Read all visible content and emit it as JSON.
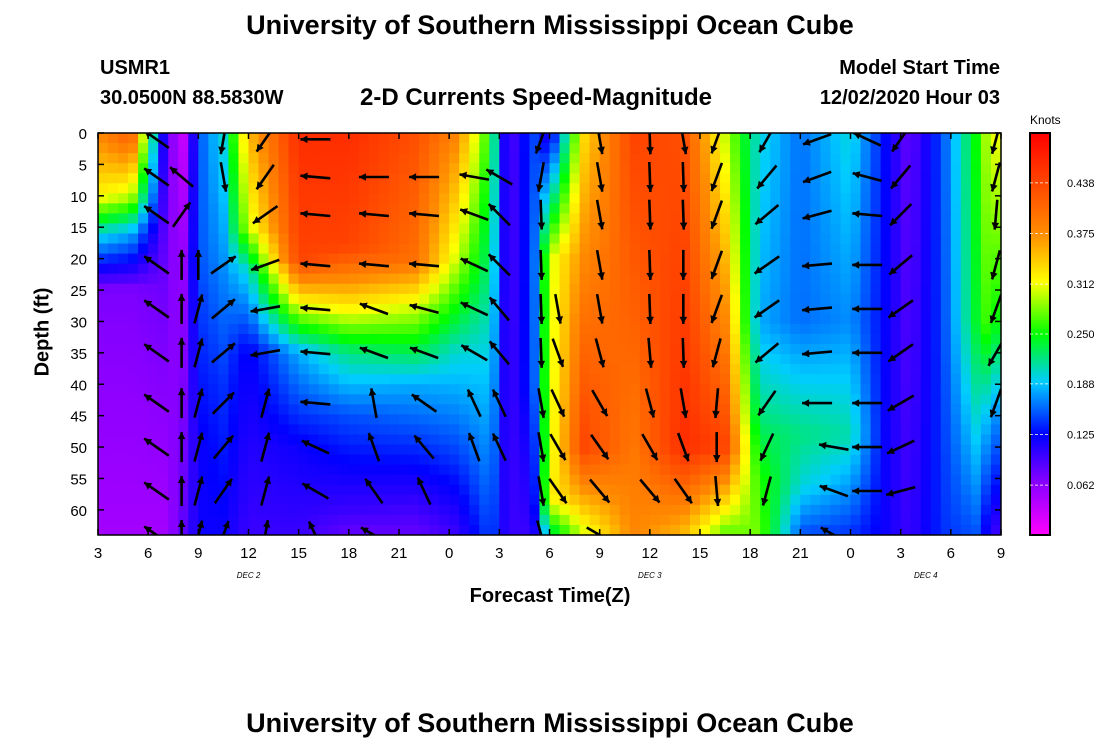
{
  "header": {
    "title": "University of Southern Mississippi Ocean Cube",
    "station": "USMR1",
    "coords": "30.0500N 88.5830W",
    "plot_title": "2-D Currents Speed-Magnitude",
    "model_start_label": "Model Start Time",
    "model_start_value": "12/02/2020 Hour 03"
  },
  "footer": {
    "title": "University of Southern Mississippi Ocean Cube"
  },
  "chart_data": {
    "type": "heatmap",
    "title": "2-D Currents Speed-Magnitude",
    "xlabel": "Forecast Time(Z)",
    "ylabel": "Depth (ft)",
    "x_tick_labels": [
      "3",
      "6",
      "9",
      "12",
      "15",
      "18",
      "21",
      "0",
      "3",
      "6",
      "9",
      "12",
      "15",
      "18",
      "21",
      "0",
      "3",
      "6",
      "9"
    ],
    "x_range_hours": [
      0,
      54
    ],
    "date_labels": [
      {
        "label": "DEC 2",
        "hour": 9
      },
      {
        "label": "DEC 3",
        "hour": 33
      },
      {
        "label": "DEC 4",
        "hour": 49.5
      }
    ],
    "y_ticks": [
      0,
      5,
      10,
      15,
      20,
      25,
      30,
      35,
      40,
      45,
      50,
      55,
      60
    ],
    "ylim": [
      0,
      64
    ],
    "y_inverted": true,
    "colorbar": {
      "units": "Knots",
      "ticks": [
        0.062,
        0.125,
        0.188,
        0.25,
        0.312,
        0.375,
        0.438
      ],
      "range": [
        0.0,
        0.5
      ]
    },
    "speed_columns": [
      {
        "hour": 0,
        "p": [
          [
            0,
            0.38
          ],
          [
            10,
            0.32
          ],
          [
            16,
            0.2
          ],
          [
            25,
            0.07
          ],
          [
            64,
            0.05
          ]
        ]
      },
      {
        "hour": 2,
        "p": [
          [
            0,
            0.42
          ],
          [
            10,
            0.3
          ],
          [
            16,
            0.18
          ],
          [
            25,
            0.07
          ],
          [
            64,
            0.05
          ]
        ]
      },
      {
        "hour": 4,
        "p": [
          [
            0,
            0.1
          ],
          [
            20,
            0.08
          ],
          [
            64,
            0.05
          ]
        ]
      },
      {
        "hour": 5,
        "p": [
          [
            0,
            0.02
          ],
          [
            20,
            0.05
          ],
          [
            64,
            0.08
          ]
        ]
      },
      {
        "hour": 6,
        "p": [
          [
            0,
            0.15
          ],
          [
            20,
            0.15
          ],
          [
            50,
            0.12
          ],
          [
            64,
            0.12
          ]
        ]
      },
      {
        "hour": 7.5,
        "p": [
          [
            0,
            0.2
          ],
          [
            15,
            0.18
          ],
          [
            40,
            0.14
          ],
          [
            64,
            0.12
          ]
        ]
      },
      {
        "hour": 9,
        "p": [
          [
            0,
            0.35
          ],
          [
            15,
            0.3
          ],
          [
            22,
            0.2
          ],
          [
            35,
            0.12
          ],
          [
            64,
            0.1
          ]
        ]
      },
      {
        "hour": 12,
        "p": [
          [
            0,
            0.46
          ],
          [
            20,
            0.44
          ],
          [
            28,
            0.3
          ],
          [
            35,
            0.18
          ],
          [
            50,
            0.12
          ],
          [
            64,
            0.1
          ]
        ]
      },
      {
        "hour": 15,
        "p": [
          [
            0,
            0.46
          ],
          [
            18,
            0.44
          ],
          [
            28,
            0.32
          ],
          [
            35,
            0.22
          ],
          [
            45,
            0.15
          ],
          [
            60,
            0.1
          ],
          [
            64,
            0.08
          ]
        ]
      },
      {
        "hour": 19,
        "p": [
          [
            0,
            0.43
          ],
          [
            20,
            0.4
          ],
          [
            28,
            0.3
          ],
          [
            40,
            0.18
          ],
          [
            64,
            0.08
          ]
        ]
      },
      {
        "hour": 21.5,
        "p": [
          [
            0,
            0.38
          ],
          [
            20,
            0.3
          ],
          [
            35,
            0.2
          ],
          [
            64,
            0.1
          ]
        ]
      },
      {
        "hour": 23.5,
        "p": [
          [
            0,
            0.25
          ],
          [
            64,
            0.15
          ]
        ]
      },
      {
        "hour": 24.5,
        "p": [
          [
            0,
            0.08
          ],
          [
            64,
            0.1
          ]
        ]
      },
      {
        "hour": 26,
        "p": [
          [
            0,
            0.15
          ],
          [
            40,
            0.14
          ],
          [
            64,
            0.1
          ]
        ]
      },
      {
        "hour": 27,
        "p": [
          [
            0,
            0.1
          ],
          [
            20,
            0.3
          ],
          [
            50,
            0.3
          ],
          [
            58,
            0.32
          ],
          [
            64,
            0.22
          ]
        ]
      },
      {
        "hour": 29,
        "p": [
          [
            0,
            0.33
          ],
          [
            30,
            0.4
          ],
          [
            50,
            0.44
          ],
          [
            58,
            0.36
          ],
          [
            64,
            0.3
          ]
        ]
      },
      {
        "hour": 32,
        "p": [
          [
            0,
            0.44
          ],
          [
            64,
            0.38
          ]
        ]
      },
      {
        "hour": 35,
        "p": [
          [
            0,
            0.43
          ],
          [
            50,
            0.46
          ],
          [
            60,
            0.38
          ],
          [
            64,
            0.35
          ]
        ]
      },
      {
        "hour": 37.5,
        "p": [
          [
            0,
            0.3
          ],
          [
            30,
            0.38
          ],
          [
            50,
            0.44
          ],
          [
            60,
            0.32
          ],
          [
            64,
            0.27
          ]
        ]
      },
      {
        "hour": 39.5,
        "p": [
          [
            0,
            0.2
          ],
          [
            30,
            0.18
          ],
          [
            45,
            0.22
          ],
          [
            55,
            0.26
          ],
          [
            64,
            0.28
          ]
        ]
      },
      {
        "hour": 42,
        "p": [
          [
            0,
            0.16
          ],
          [
            30,
            0.16
          ],
          [
            48,
            0.22
          ],
          [
            56,
            0.2
          ],
          [
            64,
            0.15
          ]
        ]
      },
      {
        "hour": 45,
        "p": [
          [
            0,
            0.2
          ],
          [
            30,
            0.17
          ],
          [
            48,
            0.21
          ],
          [
            64,
            0.14
          ]
        ]
      },
      {
        "hour": 47,
        "p": [
          [
            0,
            0.13
          ],
          [
            64,
            0.12
          ]
        ]
      },
      {
        "hour": 48.5,
        "p": [
          [
            0,
            0.08
          ],
          [
            64,
            0.1
          ]
        ]
      },
      {
        "hour": 50.5,
        "p": [
          [
            0,
            0.15
          ],
          [
            64,
            0.14
          ]
        ]
      },
      {
        "hour": 52.5,
        "p": [
          [
            0,
            0.25
          ],
          [
            30,
            0.24
          ],
          [
            64,
            0.15
          ]
        ]
      },
      {
        "hour": 53.5,
        "p": [
          [
            0,
            0.32
          ],
          [
            30,
            0.28
          ],
          [
            45,
            0.18
          ],
          [
            64,
            0.1
          ]
        ]
      },
      {
        "hour": 54,
        "p": [
          [
            0,
            0.3
          ],
          [
            64,
            0.1
          ]
        ]
      }
    ],
    "vector_rows_depth": [
      1,
      7,
      13,
      21,
      28,
      35,
      43,
      50,
      57,
      64
    ],
    "vector_columns": [
      {
        "hour": 3.5,
        "a": [
          305,
          305,
          305,
          305,
          305,
          305,
          305,
          305,
          305,
          305
        ]
      },
      {
        "hour": 5,
        "a": [
          null,
          310,
          35,
          0,
          0,
          0,
          0,
          0,
          0,
          0
        ]
      },
      {
        "hour": 6,
        "a": [
          null,
          null,
          null,
          0,
          15,
          15,
          15,
          15,
          15,
          15
        ]
      },
      {
        "hour": 7.5,
        "a": [
          190,
          170,
          null,
          55,
          50,
          50,
          45,
          40,
          35,
          20
        ]
      },
      {
        "hour": 10,
        "a": [
          215,
          215,
          235,
          250,
          260,
          260,
          15,
          15,
          15,
          10
        ]
      },
      {
        "hour": 13,
        "a": [
          270,
          275,
          275,
          275,
          275,
          275,
          275,
          295,
          300,
          335
        ]
      },
      {
        "hour": 16.5,
        "a": [
          null,
          270,
          275,
          275,
          290,
          290,
          350,
          340,
          325,
          300
        ]
      },
      {
        "hour": 19.5,
        "a": [
          null,
          270,
          275,
          275,
          285,
          290,
          305,
          320,
          335,
          null
        ]
      },
      {
        "hour": 22.5,
        "a": [
          null,
          280,
          290,
          295,
          295,
          300,
          335,
          340,
          null,
          null
        ]
      },
      {
        "hour": 24,
        "a": [
          null,
          300,
          315,
          315,
          320,
          320,
          335,
          335,
          null,
          null
        ]
      },
      {
        "hour": 26.5,
        "a": [
          200,
          190,
          178,
          178,
          178,
          178,
          170,
          170,
          170,
          165
        ]
      },
      {
        "hour": 27.5,
        "a": [
          null,
          null,
          null,
          null,
          170,
          160,
          155,
          150,
          145,
          null
        ]
      },
      {
        "hour": 30,
        "a": [
          170,
          170,
          170,
          170,
          170,
          165,
          150,
          145,
          140,
          120
        ]
      },
      {
        "hour": 33,
        "a": [
          178,
          178,
          178,
          178,
          178,
          175,
          165,
          150,
          140,
          null
        ]
      },
      {
        "hour": 35,
        "a": [
          170,
          178,
          178,
          180,
          180,
          178,
          170,
          160,
          145,
          null
        ]
      },
      {
        "hour": 37,
        "a": [
          200,
          200,
          200,
          200,
          200,
          195,
          185,
          180,
          175,
          null
        ]
      },
      {
        "hour": 40,
        "a": [
          210,
          220,
          230,
          235,
          235,
          230,
          215,
          205,
          195,
          null
        ]
      },
      {
        "hour": 43,
        "a": [
          250,
          250,
          255,
          265,
          265,
          265,
          270,
          null,
          null,
          null
        ]
      },
      {
        "hour": 44,
        "a": [
          null,
          null,
          null,
          null,
          null,
          null,
          null,
          280,
          290,
          300
        ]
      },
      {
        "hour": 46,
        "a": [
          295,
          285,
          275,
          270,
          270,
          270,
          270,
          270,
          270,
          null
        ]
      },
      {
        "hour": 48,
        "a": [
          215,
          220,
          225,
          230,
          235,
          235,
          240,
          245,
          255,
          null
        ]
      },
      {
        "hour": 53.7,
        "a": [
          195,
          195,
          185,
          195,
          200,
          210,
          200,
          null,
          null,
          null
        ]
      }
    ]
  }
}
